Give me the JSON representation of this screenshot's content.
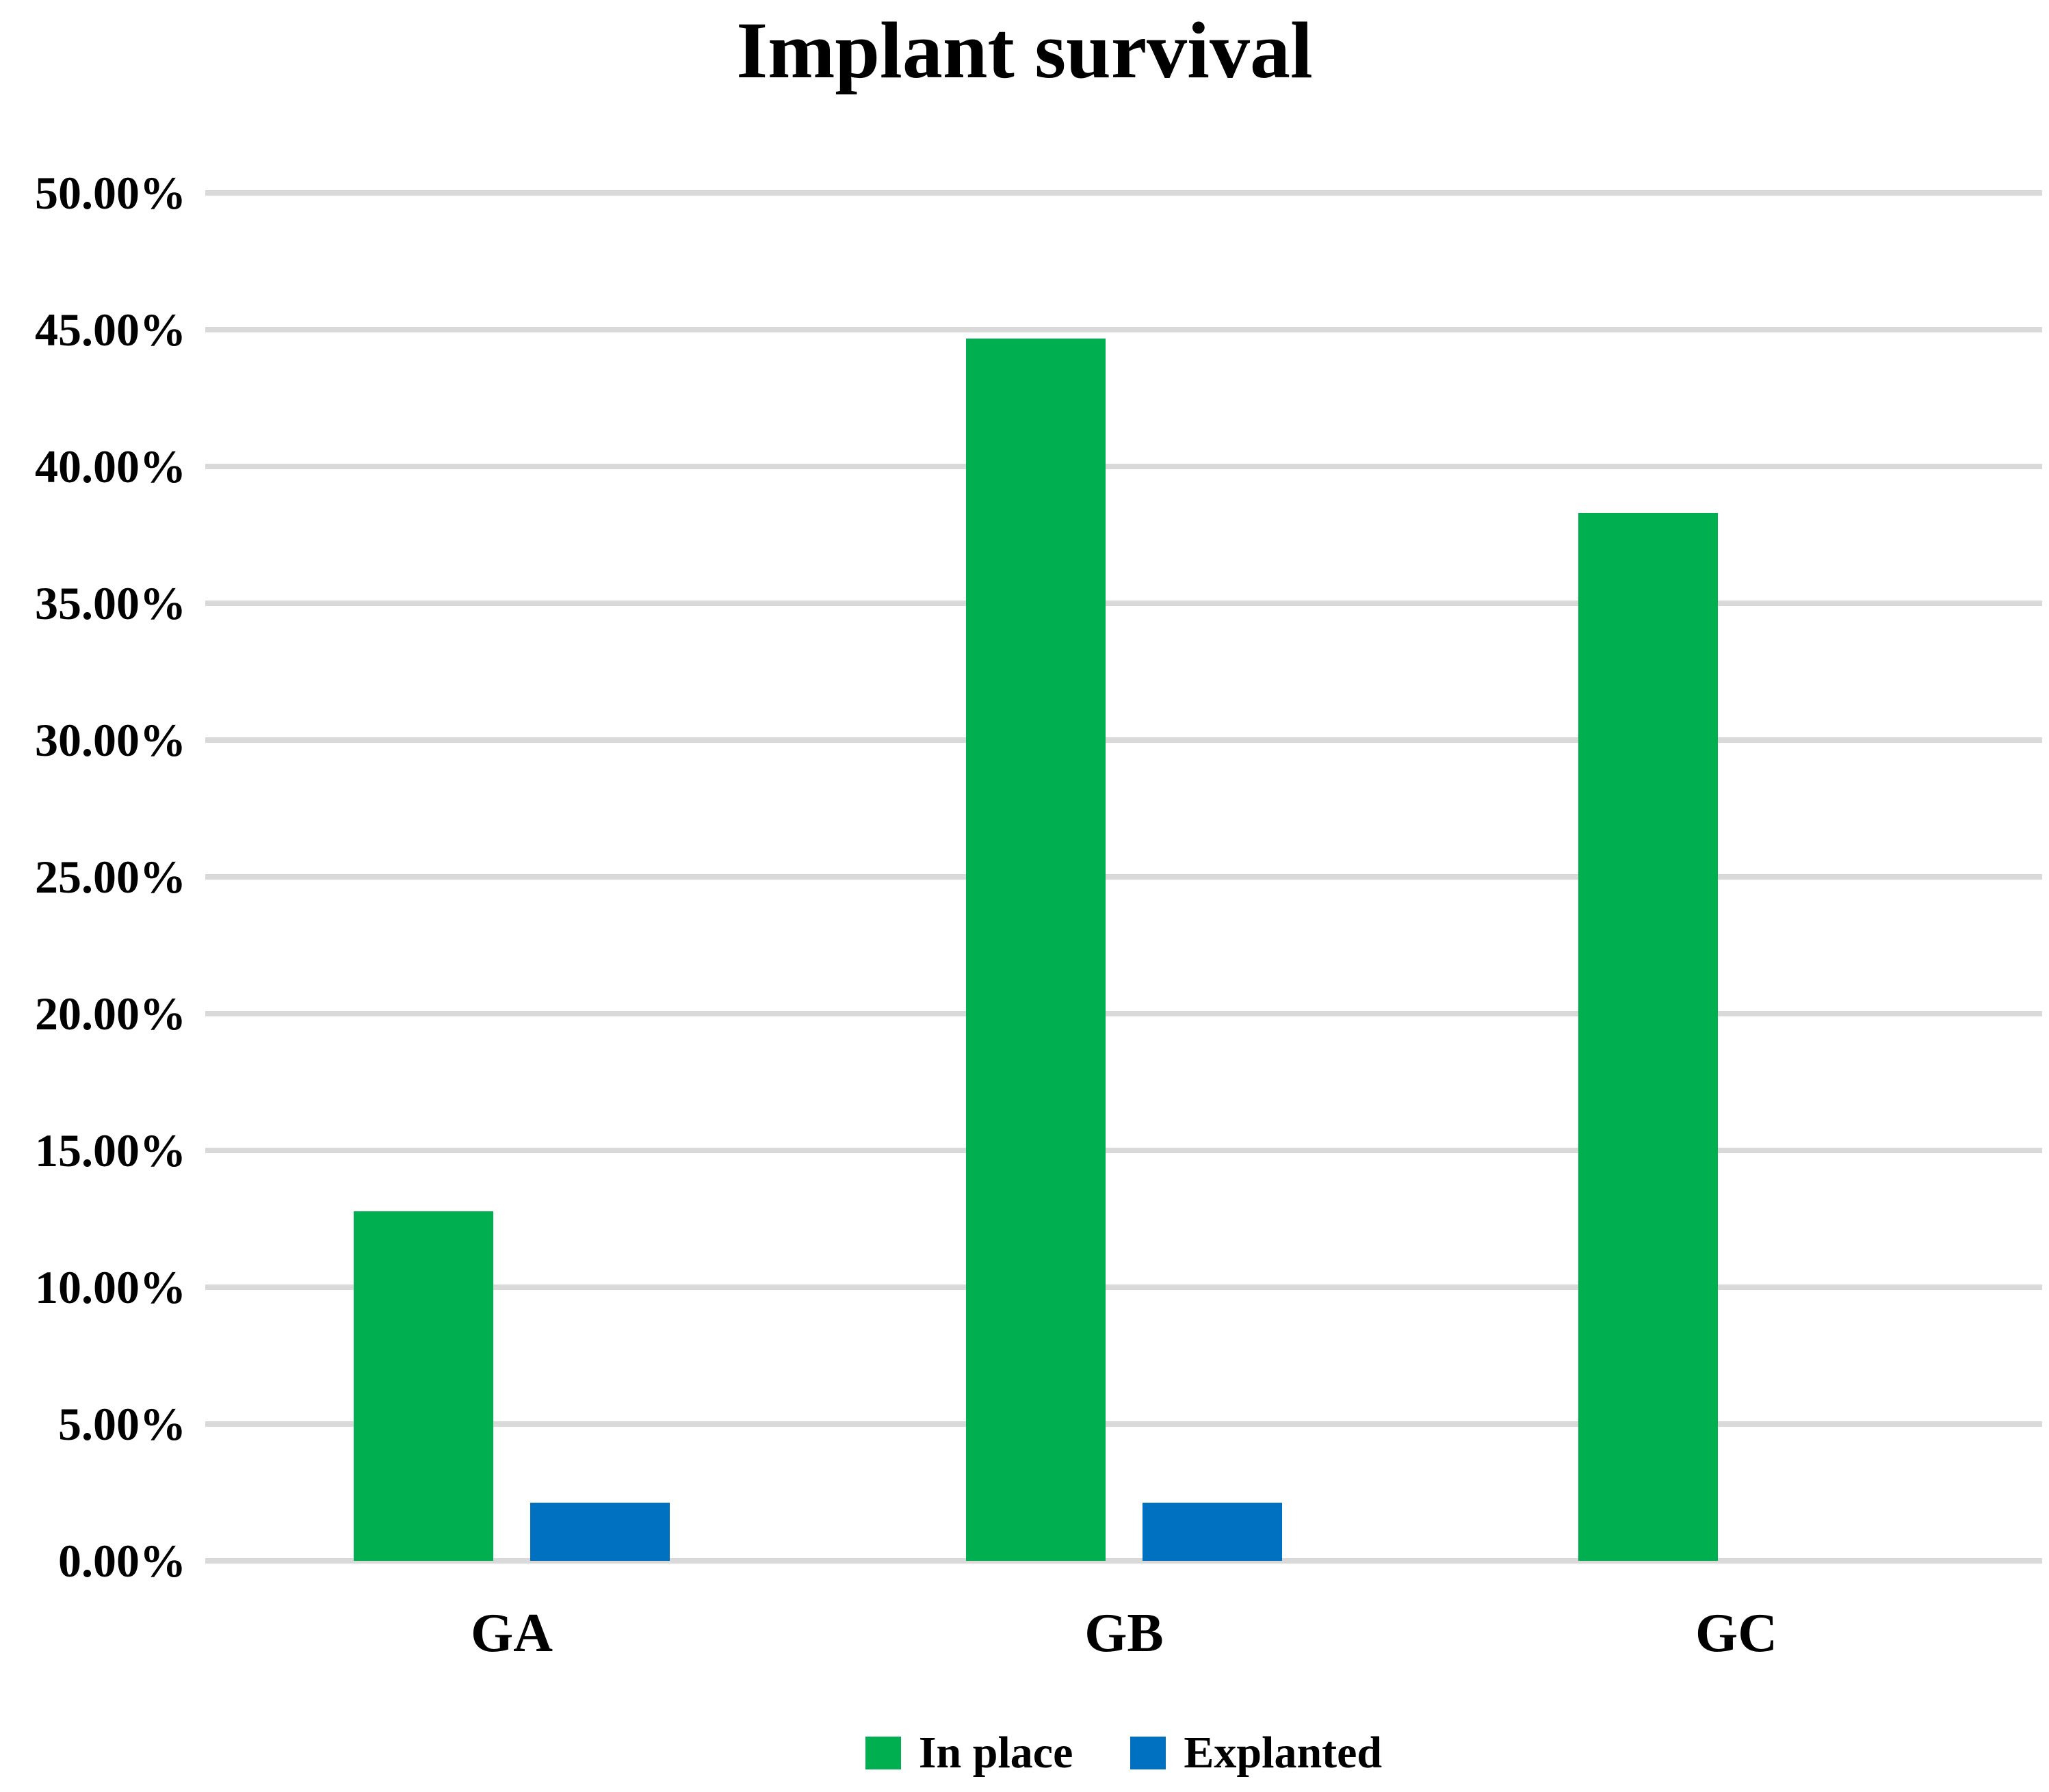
{
  "title": "Implant survival",
  "chart_data": {
    "type": "bar",
    "title": "Implant survival",
    "categories": [
      "GA",
      "GB",
      "GC"
    ],
    "series": [
      {
        "name": "In place",
        "color": "#00B050",
        "values": [
          12.77,
          44.68,
          38.3
        ]
      },
      {
        "name": "Explanted",
        "color": "#0070C0",
        "values": [
          2.13,
          2.13,
          0
        ]
      }
    ],
    "xlabel": "",
    "ylabel": "",
    "ylim": [
      0,
      50
    ],
    "ytick_step": 5,
    "ytick_labels": [
      "0.00%",
      "5.00%",
      "10.00%",
      "15.00%",
      "20.00%",
      "25.00%",
      "30.00%",
      "35.00%",
      "40.00%",
      "45.00%",
      "50.00%"
    ],
    "grid": "horizontal",
    "gridline_color": "#D9D9D9",
    "background": "#FFFFFF",
    "text_color": "#000000",
    "legend_position": "bottom"
  }
}
